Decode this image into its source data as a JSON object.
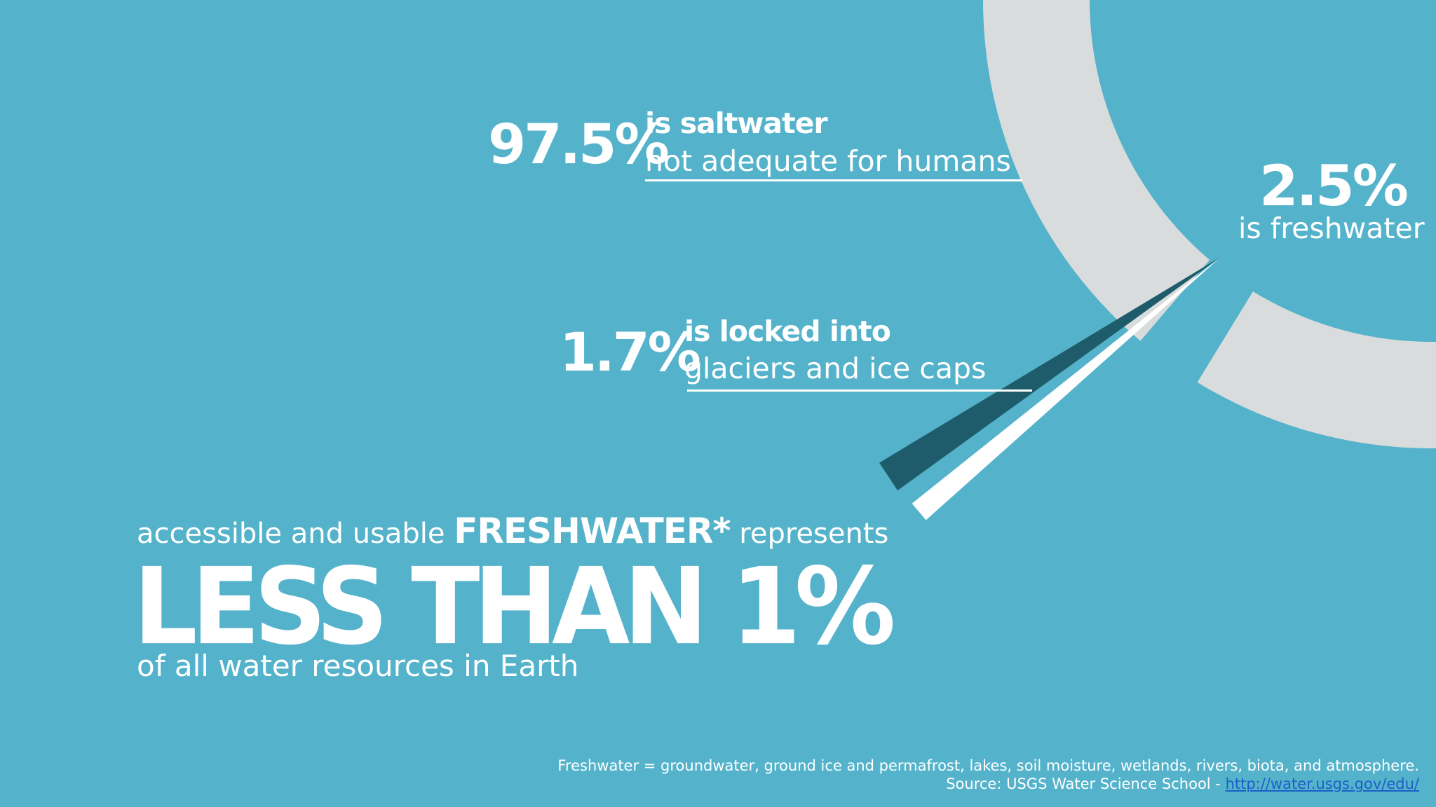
{
  "chart_data": {
    "type": "pie",
    "slices": [
      {
        "label": "is saltwater",
        "value": 97.5,
        "color": "#d9dcdd"
      },
      {
        "label": "is freshwater",
        "value": 2.5,
        "color": "#54b3cb"
      },
      {
        "label": "is locked into glaciers and ice caps",
        "value": 1.7,
        "color": "#1f5c6b"
      },
      {
        "label": "accessible and usable FRESHWATER*",
        "value": 0.8,
        "color": "#ffffff"
      }
    ]
  },
  "saltwater": {
    "pct": "97.5%",
    "label_strong": "is saltwater",
    "label_light": "not adequate for humans"
  },
  "freshwater": {
    "pct": "2.5%",
    "label": "is freshwater"
  },
  "glaciers": {
    "pct": "1.7%",
    "label_strong": "is locked into",
    "label_light": "glaciers and ice caps"
  },
  "headline": {
    "prefix": "accessible and usable ",
    "strong": "FRESHWATER*",
    "suffix": " represents",
    "big": "LESS THAN 1%",
    "sub": "of all water resources in Earth"
  },
  "footnote": {
    "line1": "Freshwater = groundwater, ground ice and permafrost, lakes, soil moisture, wetlands, rivers, biota, and atmosphere.",
    "source_prefix": "Source: USGS Water Science School - ",
    "source_link": "http://water.usgs.gov/edu/"
  },
  "colors": {
    "background": "#54b3cb",
    "ring": "#d9dcdd",
    "glacier_wedge": "#1f5c6b",
    "usable_wedge": "#ffffff",
    "text": "#ffffff",
    "link": "#1c5fc7"
  }
}
